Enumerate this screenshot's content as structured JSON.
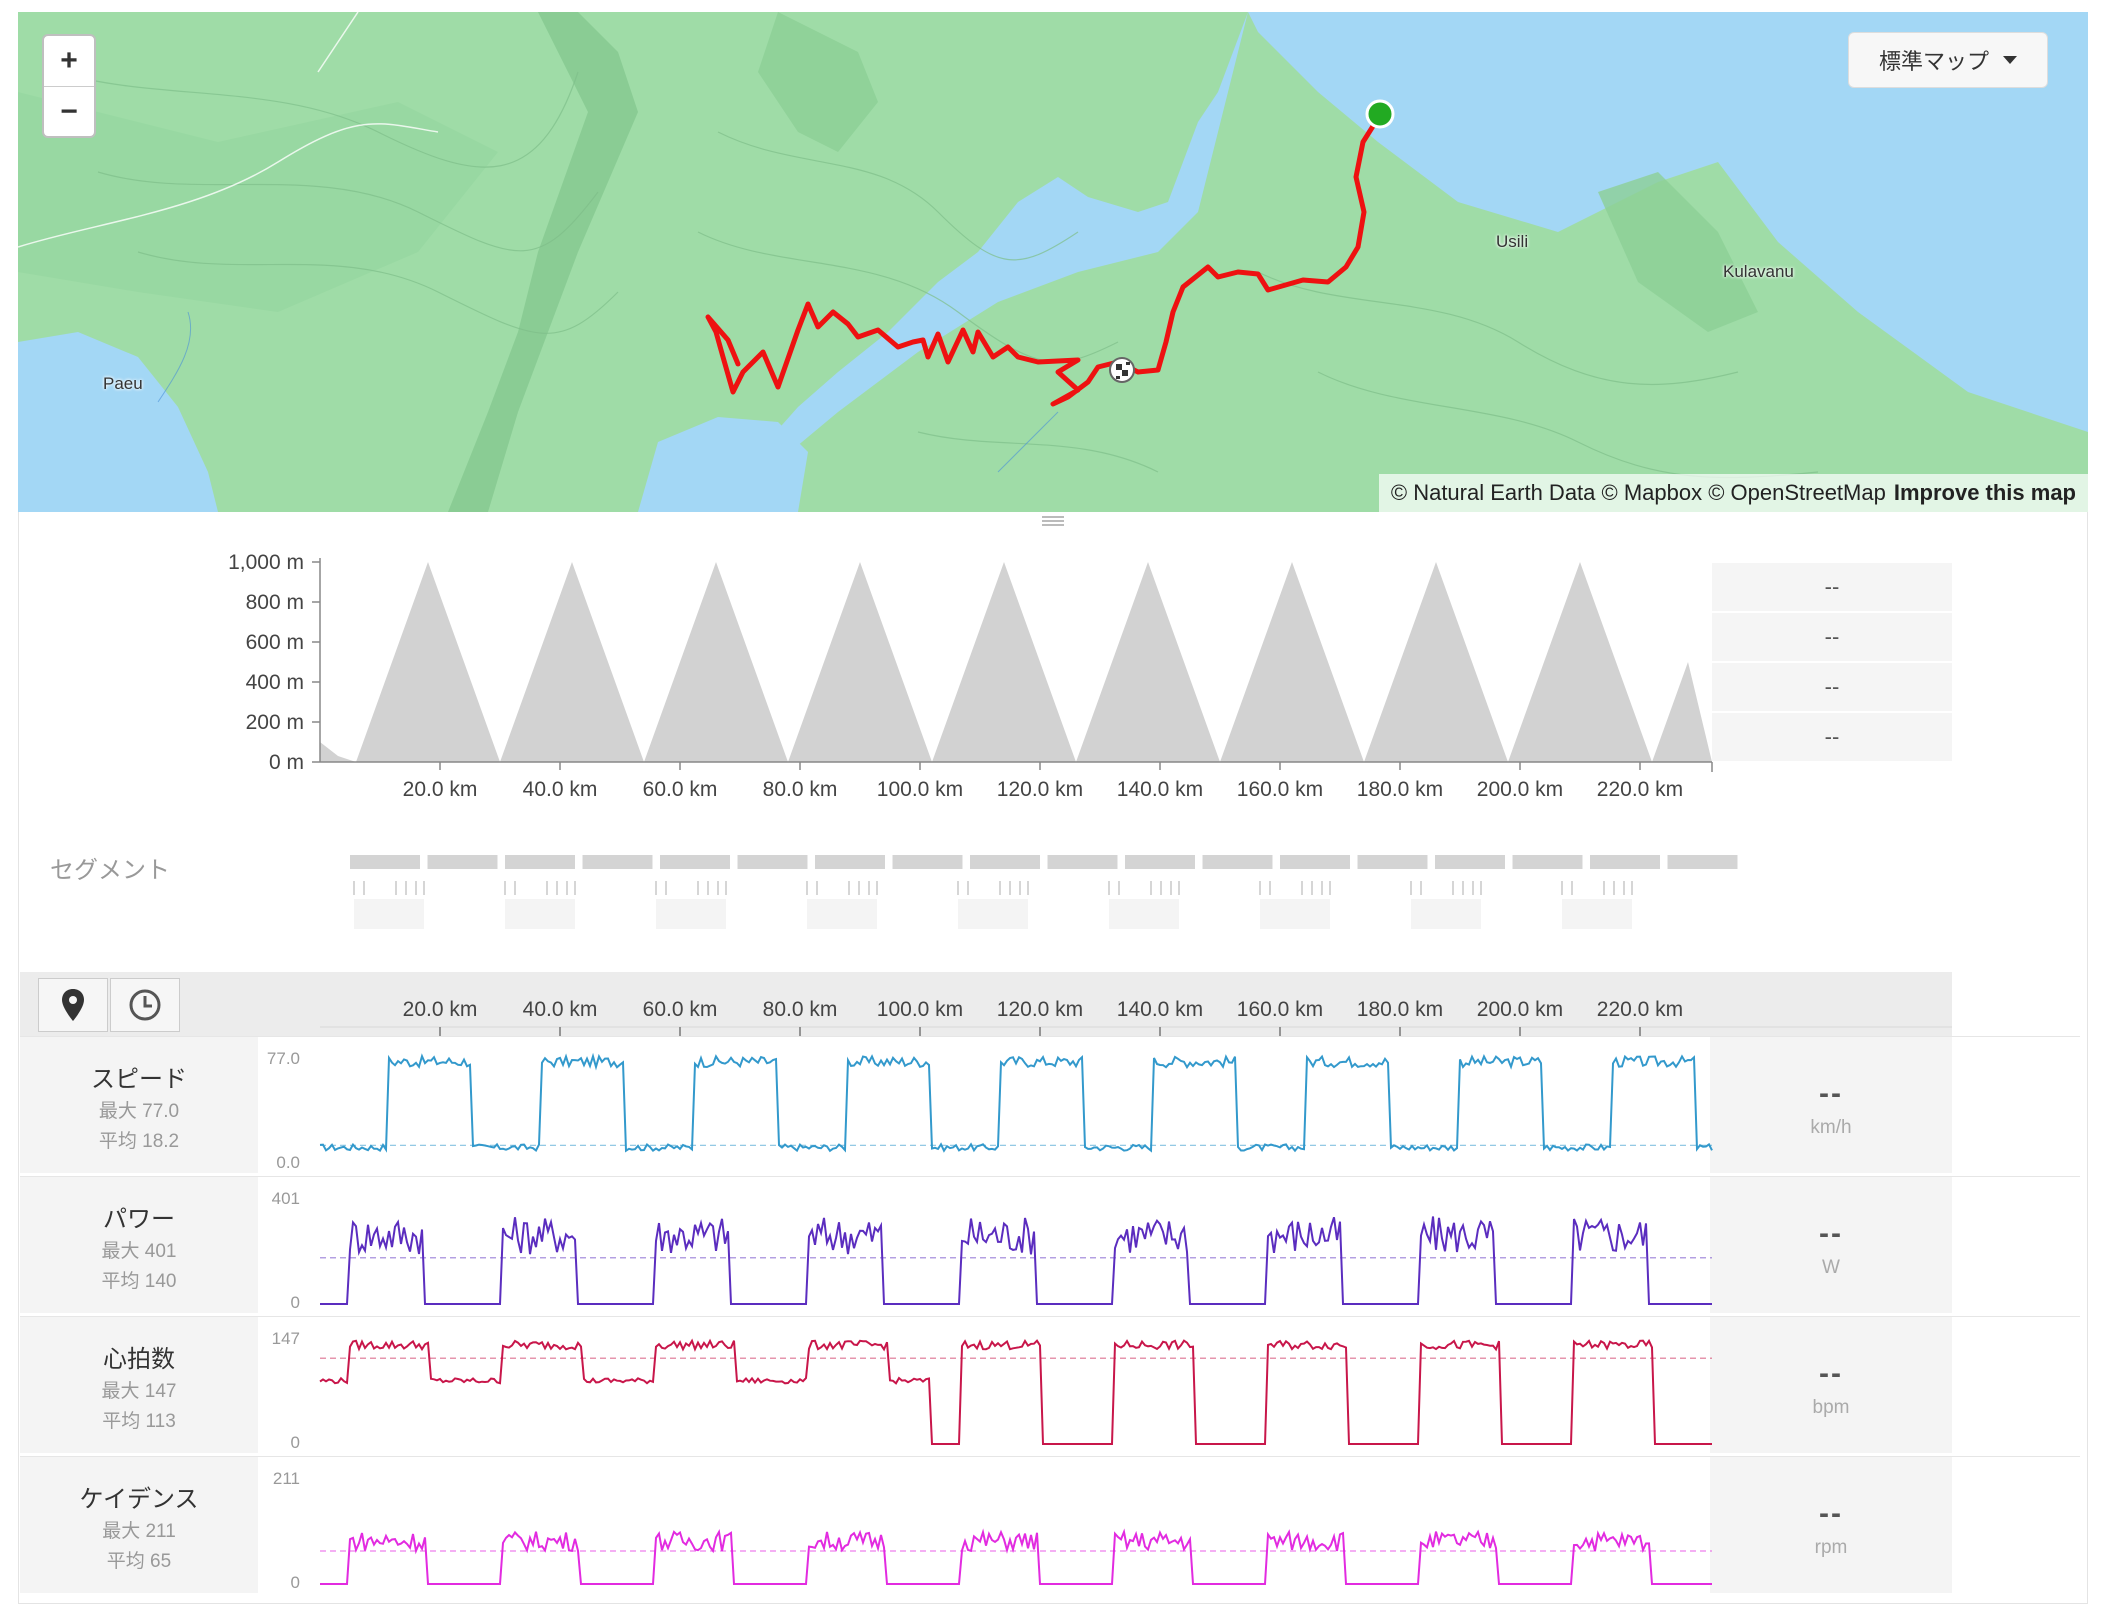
{
  "map": {
    "zoom_in": "+",
    "zoom_out": "−",
    "map_type": "標準マップ",
    "attribution": "© Natural Earth Data © Mapbox © OpenStreetMap",
    "improve": "Improve this map",
    "places": [
      "Paeu",
      "Usili",
      "Kulavanu"
    ],
    "route_color": "#ee1111",
    "start_marker": "green-dot",
    "finish_marker": "checkered-flag"
  },
  "elevation": {
    "y_ticks": [
      "1,000 m",
      "800 m",
      "600 m",
      "400 m",
      "200 m",
      "0 m"
    ],
    "x_ticks": [
      "20.0 km",
      "40.0 km",
      "60.0 km",
      "80.0 km",
      "100.0 km",
      "120.0 km",
      "140.0 km",
      "160.0 km",
      "180.0 km",
      "200.0 km",
      "220.0 km"
    ],
    "side_values": [
      "--",
      "--",
      "--",
      "--"
    ]
  },
  "segments": {
    "label": "セグメント"
  },
  "toolbar": {
    "distance_icon": "map-pin-icon",
    "time_icon": "clock-icon"
  },
  "streams": [
    {
      "name": "スピード",
      "max": "最大 77.0",
      "avg": "平均 18.2",
      "top": "77.0",
      "bottom": "0.0",
      "value": "--",
      "unit": "km/h",
      "color": "#3399cc"
    },
    {
      "name": "パワー",
      "max": "最大 401",
      "avg": "平均 140",
      "top": "401",
      "bottom": "0",
      "value": "--",
      "unit": "W",
      "color": "#5b2dbf"
    },
    {
      "name": "心拍数",
      "max": "最大 147",
      "avg": "平均 113",
      "top": "147",
      "bottom": "0",
      "value": "--",
      "unit": "bpm",
      "color": "#c8164a"
    },
    {
      "name": "ケイデンス",
      "max": "最大 211",
      "avg": "平均 65",
      "top": "211",
      "bottom": "0",
      "value": "--",
      "unit": "rpm",
      "color": "#e22be0"
    }
  ],
  "chart_data": {
    "type": "area",
    "xlabel": "",
    "ylabel": "",
    "xlim": [
      0,
      232
    ],
    "ylim": [
      0,
      1000
    ],
    "x_ticks_km": [
      20,
      40,
      60,
      80,
      100,
      120,
      140,
      160,
      180,
      200,
      220
    ],
    "x_km": [
      0,
      3,
      6,
      12,
      18,
      24,
      30,
      36,
      42,
      48,
      54,
      60,
      66,
      72,
      78,
      84,
      90,
      96,
      102,
      108,
      114,
      120,
      126,
      132,
      138,
      144,
      150,
      156,
      162,
      168,
      174,
      180,
      186,
      192,
      198,
      204,
      210,
      216,
      222,
      228,
      232
    ],
    "elevation_m": [
      100,
      30,
      0,
      500,
      1000,
      500,
      0,
      500,
      1000,
      500,
      0,
      500,
      1000,
      500,
      0,
      500,
      1000,
      500,
      0,
      500,
      1000,
      500,
      0,
      500,
      1000,
      500,
      0,
      500,
      1000,
      500,
      0,
      500,
      1000,
      500,
      0,
      500,
      1000,
      500,
      0,
      500,
      0
    ],
    "grid": false
  }
}
